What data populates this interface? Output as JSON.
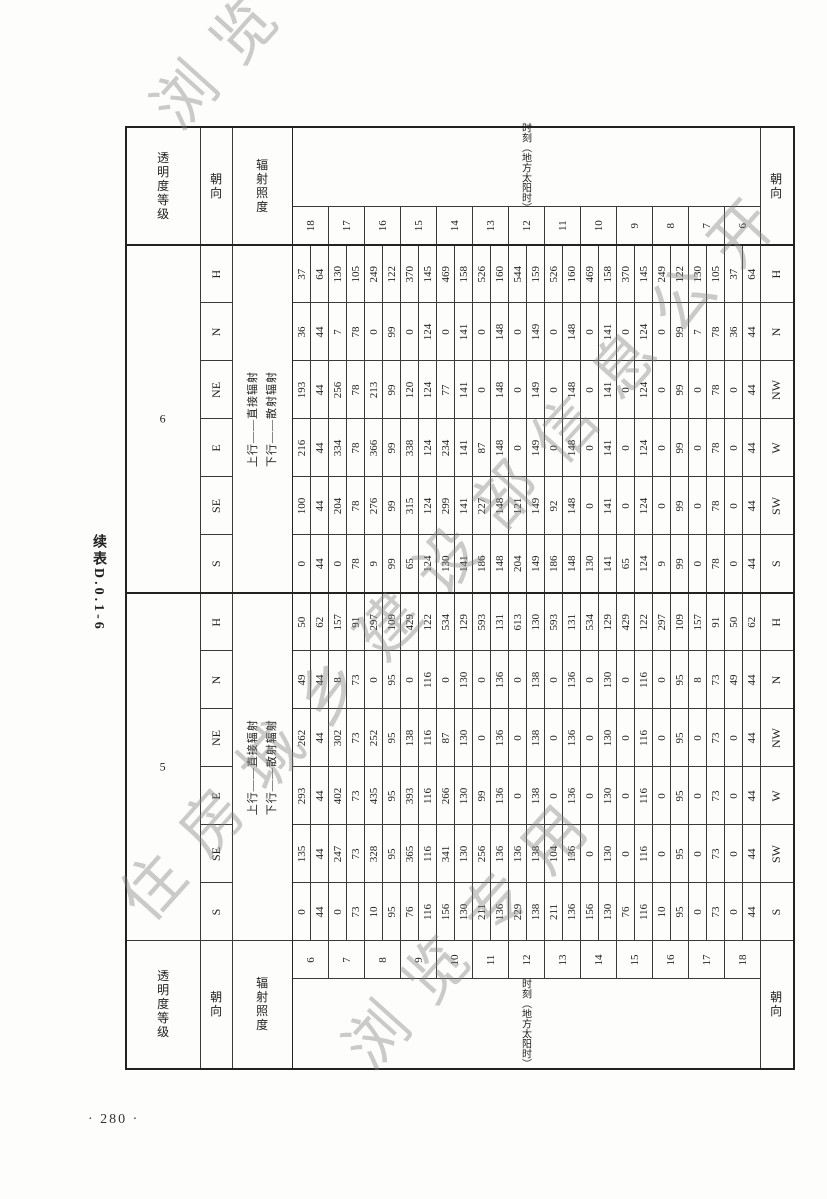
{
  "title": "续表D.0.1-6",
  "page_number": "· 280 ·",
  "watermark": {
    "line0": "浏览专用",
    "line1": "住房城乡建设部信息公开",
    "line2": "浏览专用"
  },
  "table": {
    "level_label": "透明度等级",
    "orient_label": "朝向",
    "radiation_label": "辐射照度",
    "time_label": "时刻（地方太阳时）",
    "note_upper": "上行——直接辐射",
    "note_lower": "下行——散射辐射",
    "levels": [
      "5",
      "6"
    ],
    "header_orientations": [
      "S",
      "SE",
      "E",
      "NE",
      "N",
      "H"
    ],
    "footer_orientations": [
      "S",
      "SW",
      "W",
      "NW",
      "N",
      "H"
    ],
    "times_left": [
      6,
      7,
      8,
      9,
      10,
      11,
      12,
      13,
      14,
      15,
      16,
      17,
      18
    ],
    "times_right": [
      18,
      17,
      16,
      15,
      14,
      13,
      12,
      11,
      10,
      9,
      8,
      7,
      6
    ],
    "columns": [
      "S",
      "SE",
      "E",
      "NE",
      "N",
      "H"
    ],
    "value_pairs_meaning": [
      "直接辐射",
      "散射辐射"
    ],
    "rows": [
      {
        "t": 6,
        "tr": 18,
        "l5": [
          [
            0,
            44
          ],
          [
            135,
            44
          ],
          [
            293,
            44
          ],
          [
            262,
            44
          ],
          [
            49,
            44
          ],
          [
            50,
            62
          ]
        ],
        "l6": [
          [
            0,
            44
          ],
          [
            100,
            44
          ],
          [
            216,
            44
          ],
          [
            193,
            44
          ],
          [
            36,
            44
          ],
          [
            37,
            64
          ]
        ]
      },
      {
        "t": 7,
        "tr": 17,
        "l5": [
          [
            0,
            73
          ],
          [
            247,
            73
          ],
          [
            402,
            73
          ],
          [
            302,
            73
          ],
          [
            8,
            73
          ],
          [
            157,
            91
          ]
        ],
        "l6": [
          [
            0,
            78
          ],
          [
            204,
            78
          ],
          [
            334,
            78
          ],
          [
            256,
            78
          ],
          [
            7,
            78
          ],
          [
            130,
            105
          ]
        ]
      },
      {
        "t": 8,
        "tr": 16,
        "l5": [
          [
            10,
            95
          ],
          [
            328,
            95
          ],
          [
            435,
            95
          ],
          [
            252,
            95
          ],
          [
            0,
            95
          ],
          [
            297,
            109
          ]
        ],
        "l6": [
          [
            9,
            99
          ],
          [
            276,
            99
          ],
          [
            366,
            99
          ],
          [
            213,
            99
          ],
          [
            0,
            99
          ],
          [
            249,
            122
          ]
        ]
      },
      {
        "t": 9,
        "tr": 15,
        "l5": [
          [
            76,
            116
          ],
          [
            365,
            116
          ],
          [
            393,
            116
          ],
          [
            138,
            116
          ],
          [
            0,
            116
          ],
          [
            429,
            122
          ]
        ],
        "l6": [
          [
            65,
            124
          ],
          [
            315,
            124
          ],
          [
            338,
            124
          ],
          [
            120,
            124
          ],
          [
            0,
            124
          ],
          [
            370,
            145
          ]
        ]
      },
      {
        "t": 10,
        "tr": 14,
        "l5": [
          [
            156,
            130
          ],
          [
            341,
            130
          ],
          [
            266,
            130
          ],
          [
            87,
            130
          ],
          [
            0,
            130
          ],
          [
            534,
            129
          ]
        ],
        "l6": [
          [
            130,
            141
          ],
          [
            299,
            141
          ],
          [
            234,
            141
          ],
          [
            77,
            141
          ],
          [
            0,
            141
          ],
          [
            469,
            158
          ]
        ]
      },
      {
        "t": 11,
        "tr": 13,
        "l5": [
          [
            211,
            136
          ],
          [
            256,
            136
          ],
          [
            99,
            136
          ],
          [
            0,
            136
          ],
          [
            0,
            136
          ],
          [
            593,
            131
          ]
        ],
        "l6": [
          [
            186,
            148
          ],
          [
            227,
            148
          ],
          [
            87,
            148
          ],
          [
            0,
            148
          ],
          [
            0,
            148
          ],
          [
            526,
            160
          ]
        ]
      },
      {
        "t": 12,
        "tr": 12,
        "l5": [
          [
            229,
            138
          ],
          [
            136,
            138
          ],
          [
            0,
            138
          ],
          [
            0,
            138
          ],
          [
            0,
            138
          ],
          [
            613,
            130
          ]
        ],
        "l6": [
          [
            204,
            149
          ],
          [
            121,
            149
          ],
          [
            0,
            149
          ],
          [
            0,
            149
          ],
          [
            0,
            149
          ],
          [
            544,
            159
          ]
        ]
      },
      {
        "t": 13,
        "tr": 11,
        "l5": [
          [
            211,
            136
          ],
          [
            104,
            136
          ],
          [
            0,
            136
          ],
          [
            0,
            136
          ],
          [
            0,
            136
          ],
          [
            593,
            131
          ]
        ],
        "l6": [
          [
            186,
            148
          ],
          [
            92,
            148
          ],
          [
            0,
            148
          ],
          [
            0,
            148
          ],
          [
            0,
            148
          ],
          [
            526,
            160
          ]
        ]
      },
      {
        "t": 14,
        "tr": 10,
        "l5": [
          [
            156,
            130
          ],
          [
            0,
            130
          ],
          [
            0,
            130
          ],
          [
            0,
            130
          ],
          [
            0,
            130
          ],
          [
            534,
            129
          ]
        ],
        "l6": [
          [
            130,
            141
          ],
          [
            0,
            141
          ],
          [
            0,
            141
          ],
          [
            0,
            141
          ],
          [
            0,
            141
          ],
          [
            469,
            158
          ]
        ]
      },
      {
        "t": 15,
        "tr": 9,
        "l5": [
          [
            76,
            116
          ],
          [
            0,
            116
          ],
          [
            0,
            116
          ],
          [
            0,
            116
          ],
          [
            0,
            116
          ],
          [
            429,
            122
          ]
        ],
        "l6": [
          [
            65,
            124
          ],
          [
            0,
            124
          ],
          [
            0,
            124
          ],
          [
            0,
            124
          ],
          [
            0,
            124
          ],
          [
            370,
            145
          ]
        ]
      },
      {
        "t": 16,
        "tr": 8,
        "l5": [
          [
            10,
            95
          ],
          [
            0,
            95
          ],
          [
            0,
            95
          ],
          [
            0,
            95
          ],
          [
            0,
            95
          ],
          [
            297,
            109
          ]
        ],
        "l6": [
          [
            9,
            99
          ],
          [
            0,
            99
          ],
          [
            0,
            99
          ],
          [
            0,
            99
          ],
          [
            0,
            99
          ],
          [
            249,
            122
          ]
        ]
      },
      {
        "t": 17,
        "tr": 7,
        "l5": [
          [
            0,
            73
          ],
          [
            0,
            73
          ],
          [
            0,
            73
          ],
          [
            0,
            73
          ],
          [
            8,
            73
          ],
          [
            157,
            91
          ]
        ],
        "l6": [
          [
            0,
            78
          ],
          [
            0,
            78
          ],
          [
            0,
            78
          ],
          [
            0,
            78
          ],
          [
            7,
            78
          ],
          [
            130,
            105
          ]
        ]
      },
      {
        "t": 18,
        "tr": 6,
        "l5": [
          [
            0,
            44
          ],
          [
            0,
            44
          ],
          [
            0,
            44
          ],
          [
            0,
            44
          ],
          [
            49,
            44
          ],
          [
            50,
            62
          ]
        ],
        "l6": [
          [
            0,
            44
          ],
          [
            0,
            44
          ],
          [
            0,
            44
          ],
          [
            0,
            44
          ],
          [
            36,
            44
          ],
          [
            37,
            64
          ]
        ]
      }
    ]
  }
}
